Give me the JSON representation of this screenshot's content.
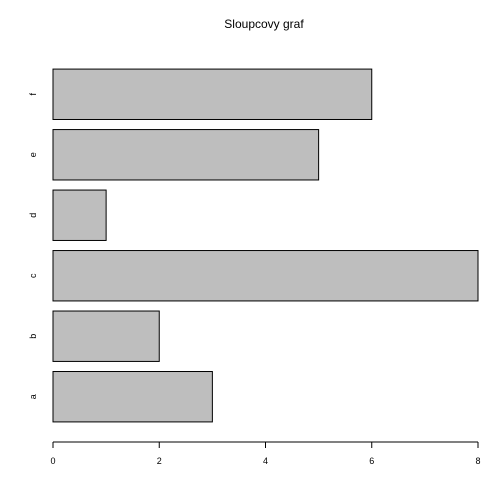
{
  "chart_data": {
    "type": "bar",
    "orientation": "horizontal",
    "title": "Sloupcovy graf",
    "xlabel": "",
    "ylabel": "",
    "categories": [
      "a",
      "b",
      "c",
      "d",
      "e",
      "f"
    ],
    "values": [
      3,
      2,
      8,
      1,
      5,
      6
    ],
    "xlim": [
      0,
      8
    ],
    "x_ticks": [
      0,
      2,
      4,
      6,
      8
    ],
    "grid": false,
    "legend": "none",
    "bar_fill_color": "#bebebe",
    "bar_edge_color": "#000000"
  }
}
